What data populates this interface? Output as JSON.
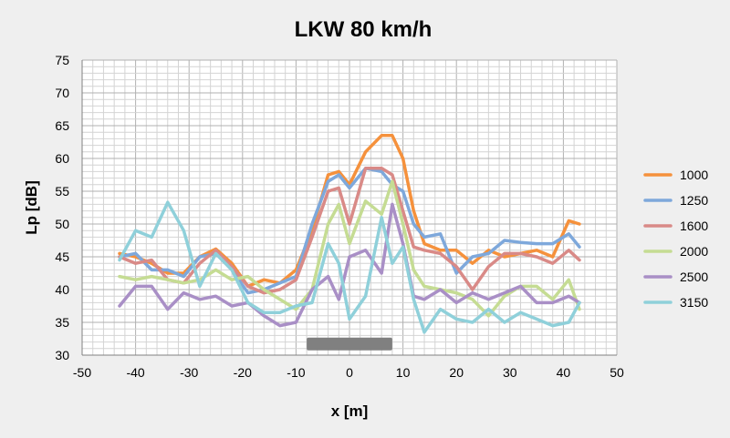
{
  "chart_data": {
    "type": "line",
    "title": "LKW 80 km/h",
    "xlabel": "x [m]",
    "ylabel": "Lp [dB]",
    "xlim": [
      -50,
      50
    ],
    "ylim": [
      30,
      75
    ],
    "xticks": [
      -50,
      -40,
      -30,
      -20,
      -10,
      0,
      10,
      20,
      30,
      40,
      50
    ],
    "yticks": [
      30,
      35,
      40,
      45,
      50,
      55,
      60,
      65,
      70,
      75
    ],
    "grid": true,
    "legend_position": "right",
    "vehicle_bar": {
      "x_start": -8,
      "x_end": 8,
      "y": 31.7,
      "color": "#808080"
    },
    "x": [
      -43,
      -40,
      -37,
      -34,
      -31,
      -28,
      -25,
      -22,
      -19,
      -16,
      -13,
      -10,
      -7,
      -4,
      -2,
      0,
      3,
      6,
      8,
      10,
      12,
      14,
      17,
      20,
      23,
      26,
      29,
      32,
      35,
      38,
      41,
      43
    ],
    "series": [
      {
        "name": "1000",
        "color": "#f5913c",
        "values": [
          45.5,
          45,
          44,
          42.5,
          42.5,
          45,
          46.2,
          44,
          40.5,
          41.5,
          41,
          43,
          49,
          57.5,
          58,
          56,
          61,
          63.5,
          63.5,
          60,
          52,
          47,
          46,
          46,
          44,
          46,
          45,
          45.5,
          46,
          45,
          50.5,
          50
        ]
      },
      {
        "name": "1250",
        "color": "#7ea8db",
        "values": [
          45,
          45.5,
          43,
          43,
          42,
          45,
          45.5,
          43,
          39.5,
          40,
          41,
          42,
          50,
          56.5,
          57.5,
          55.5,
          58.5,
          58,
          56,
          55,
          50,
          48,
          48.5,
          42.5,
          45,
          45.5,
          47.5,
          47.2,
          47,
          47,
          48.5,
          46.5
        ]
      },
      {
        "name": "1600",
        "color": "#d98a87",
        "values": [
          45,
          44,
          44.5,
          41.5,
          41,
          44,
          46,
          43.5,
          40.5,
          39.5,
          40,
          41.5,
          48,
          55,
          55.5,
          50,
          58.5,
          58.5,
          57.5,
          52,
          46.5,
          46,
          45.5,
          43.5,
          40,
          43.5,
          45.5,
          45.5,
          45,
          44,
          46,
          44.5
        ]
      },
      {
        "name": "2000",
        "color": "#c5dc93",
        "values": [
          42,
          41.5,
          42,
          41.5,
          41,
          41.5,
          43,
          41.5,
          42,
          40,
          38.5,
          37,
          40,
          50,
          53,
          47,
          53.5,
          51.5,
          56.5,
          50,
          43,
          40.5,
          40,
          39.5,
          38.5,
          36,
          39,
          40.5,
          40.5,
          38.5,
          41.5,
          37
        ]
      },
      {
        "name": "2500",
        "color": "#a98fc6",
        "values": [
          37.5,
          40.5,
          40.5,
          37,
          39.5,
          38.5,
          39,
          37.5,
          38,
          36,
          34.5,
          35,
          40,
          42,
          38.5,
          45,
          46,
          42.5,
          53,
          47,
          39,
          38.5,
          40,
          38,
          39.5,
          38.5,
          39.5,
          40.5,
          38,
          38,
          39,
          38
        ]
      },
      {
        "name": "3150",
        "color": "#8fd0da",
        "values": [
          44.5,
          49,
          48,
          53.3,
          49,
          40.5,
          45.5,
          43,
          38,
          36.5,
          36.5,
          37.5,
          38,
          47,
          44,
          35.5,
          39,
          51,
          44,
          46.5,
          38.5,
          33.5,
          37,
          35.5,
          35,
          37,
          35,
          36.5,
          35.5,
          34.5,
          35,
          38
        ]
      }
    ]
  }
}
